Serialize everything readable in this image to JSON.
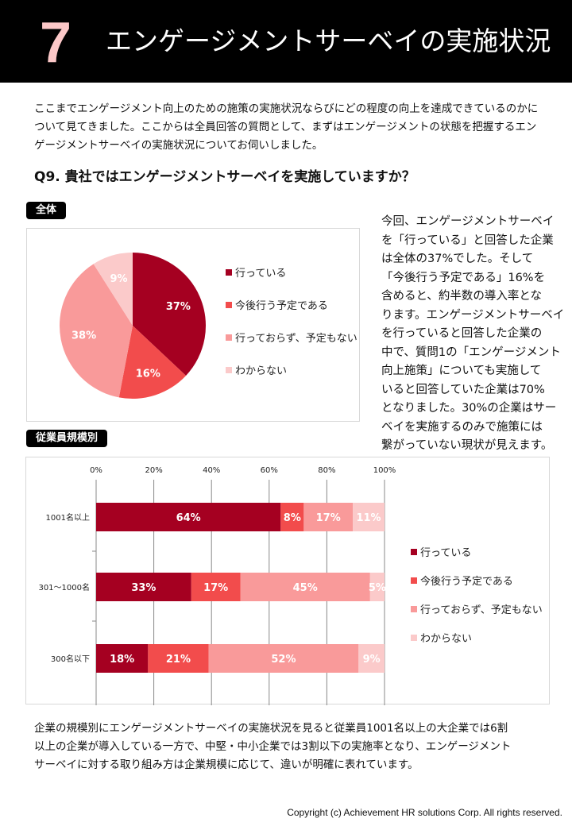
{
  "header": {
    "number": "7",
    "title": "エンゲージメントサーベイの実施状況"
  },
  "intro": [
    "ここまでエンゲージメント向上のための施策の実施状況ならびにどの程度の向上を達成できているのかに",
    "ついて見てきました。ここからは全員回答の質問として、まずはエンゲージメントの状態を把握するエン",
    "ゲージメントサーベイの実施状況についてお伺いしました。"
  ],
  "question": "Q9. 貴社ではエンゲージメントサーベイを実施していますか？",
  "tags": {
    "overall": "全体",
    "by_size": "従業員規模別"
  },
  "side_text": [
    "今回、エンゲージメントサーベイ",
    "を「行っている」と回答した企業",
    "は全体の37%でした。そして",
    "「今後行う予定である」16%を",
    "含めると、約半数の導入率とな",
    "ります。エンゲージメントサーベイ",
    "を行っていると回答した企業の",
    "中で、質問1の「エンゲージメント",
    "向上施策」についても実施して",
    "いると回答していた企業は70%",
    "となりました。30%の企業はサー",
    "ベイを実施するのみで施策には",
    "繋がっていない現状が見えます。"
  ],
  "outro": [
    "企業の規模別にエンゲージメントサーベイの実施状況を見ると従業員1001名以上の大企業では6割",
    "以上の企業が導入している一方で、中堅・中小企業では3割以下の実施率となり、エンゲージメント",
    "サーベイに対する取り組み方は企業規模に応じて、違いが明確に表れています。"
  ],
  "copyright": "Copyright (c)  Achievement HR solutions Corp. All rights reserved.",
  "chart_data": [
    {
      "type": "pie",
      "title": "全体",
      "legend_position": "right",
      "labels": [
        "行っている",
        "今後行う予定である",
        "行っておらず、予定もない",
        "わからない"
      ],
      "values": [
        37,
        16,
        38,
        9
      ],
      "value_labels": [
        "37%",
        "16%",
        "38%",
        "9%"
      ],
      "colors": [
        "#a50021",
        "#f24c4c",
        "#f99a9a",
        "#fbcaca"
      ]
    },
    {
      "type": "bar",
      "orientation": "horizontal",
      "stacked": true,
      "title": "従業員規模別",
      "legend_position": "right",
      "categories": [
        "1001名以上",
        "301～1000名",
        "300名以下"
      ],
      "xlim": [
        0,
        100
      ],
      "xticks": [
        "0%",
        "20%",
        "40%",
        "60%",
        "80%",
        "100%"
      ],
      "grid": true,
      "series": [
        {
          "name": "行っている",
          "values": [
            64,
            33,
            18
          ],
          "color": "#a50021"
        },
        {
          "name": "今後行う予定である",
          "values": [
            8,
            17,
            21
          ],
          "color": "#f24c4c"
        },
        {
          "name": "行っておらず、予定もない",
          "values": [
            17,
            45,
            52
          ],
          "color": "#f99a9a"
        },
        {
          "name": "わからない",
          "values": [
            11,
            5,
            9
          ],
          "color": "#fbcaca"
        }
      ]
    }
  ]
}
